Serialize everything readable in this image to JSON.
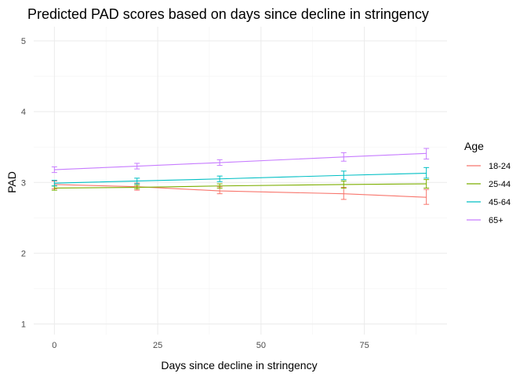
{
  "chart_data": {
    "type": "line",
    "title": "Predicted PAD scores based on days since decline in stringency",
    "xlabel": "Days since decline in stringency",
    "ylabel": "PAD",
    "xlim": [
      -5,
      95
    ],
    "ylim": [
      0.85,
      5.2
    ],
    "xticks": [
      0,
      25,
      50,
      75
    ],
    "yticks": [
      1,
      2,
      3,
      4,
      5
    ],
    "grid": true,
    "legend": {
      "title": "Age",
      "position": "right"
    },
    "x": [
      0,
      20,
      40,
      70,
      90
    ],
    "series": [
      {
        "name": "18-24",
        "color": "#F8766D",
        "values": [
          2.97,
          2.94,
          2.88,
          2.84,
          2.79
        ],
        "lower": [
          2.91,
          2.89,
          2.84,
          2.76,
          2.69
        ],
        "upper": [
          3.02,
          2.99,
          2.94,
          2.93,
          2.9
        ]
      },
      {
        "name": "25-44",
        "color": "#7CAE00",
        "values": [
          2.92,
          2.93,
          2.95,
          2.97,
          2.98
        ],
        "lower": [
          2.89,
          2.91,
          2.92,
          2.92,
          2.92
        ],
        "upper": [
          2.95,
          2.96,
          2.98,
          3.02,
          3.04
        ]
      },
      {
        "name": "45-64",
        "color": "#00BFC4",
        "values": [
          2.99,
          3.02,
          3.05,
          3.1,
          3.13
        ],
        "lower": [
          2.95,
          2.98,
          3.01,
          3.04,
          3.06
        ],
        "upper": [
          3.03,
          3.06,
          3.09,
          3.16,
          3.21
        ]
      },
      {
        "name": "65+",
        "color": "#C77CFF",
        "values": [
          3.18,
          3.23,
          3.28,
          3.36,
          3.41
        ],
        "lower": [
          3.14,
          3.19,
          3.24,
          3.3,
          3.33
        ],
        "upper": [
          3.22,
          3.27,
          3.32,
          3.42,
          3.48
        ]
      }
    ]
  }
}
